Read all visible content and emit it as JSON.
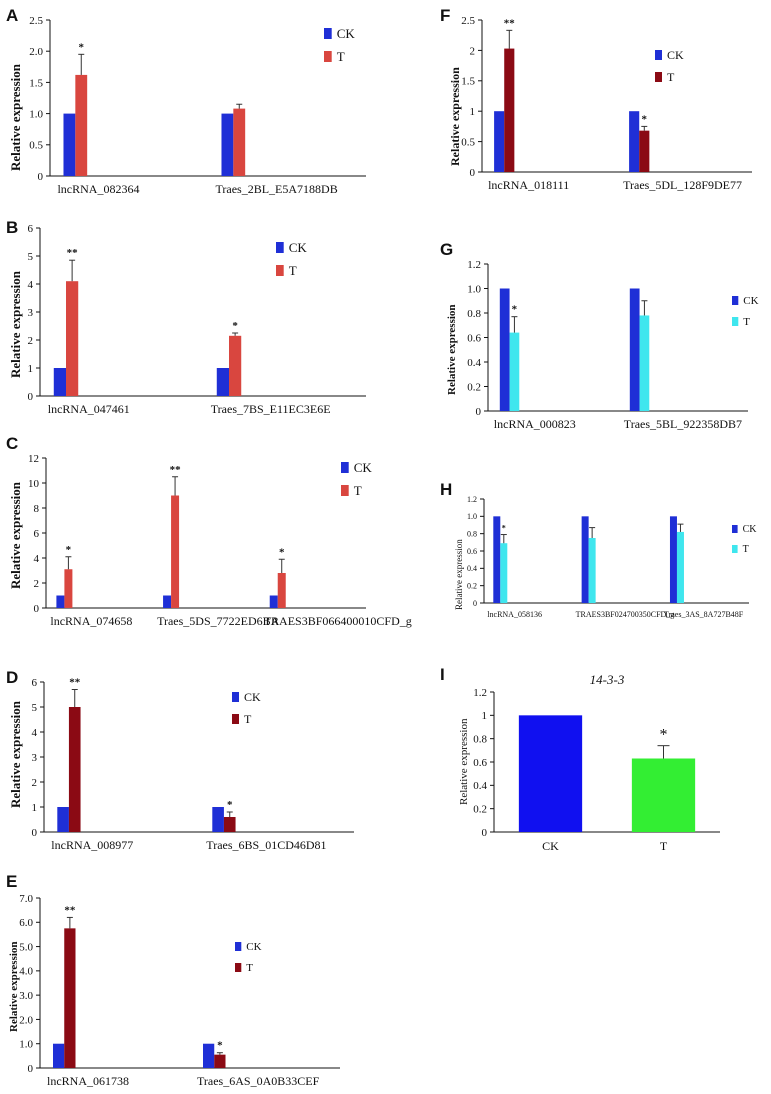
{
  "chart_data": [
    {
      "panel": "A",
      "type": "bar",
      "ylabel": "Relative expression",
      "ylim": [
        0,
        2.5
      ],
      "yticks": [
        "0",
        "0.5",
        "1.0",
        "1.5",
        "2.0",
        "2.5"
      ],
      "categories": [
        "lncRNA_082364",
        "Traes_2BL_E5A7188DB"
      ],
      "series": [
        {
          "name": "CK",
          "color": "#1f2fd6",
          "values": [
            1.0,
            1.0
          ],
          "errors": [
            0,
            0
          ]
        },
        {
          "name": "T",
          "color": "#d9463f",
          "values": [
            1.62,
            1.08
          ],
          "errors": [
            0.33,
            0.07
          ]
        }
      ],
      "significance": [
        "*",
        ""
      ]
    },
    {
      "panel": "B",
      "type": "bar",
      "ylabel": "Relative expression",
      "ylim": [
        0,
        6
      ],
      "yticks": [
        "0",
        "1",
        "2",
        "3",
        "4",
        "5",
        "6"
      ],
      "categories": [
        "lncRNA_047461",
        "Traes_7BS_E11EC3E6E"
      ],
      "series": [
        {
          "name": "CK",
          "color": "#1f2fd6",
          "values": [
            1.0,
            1.0
          ],
          "errors": [
            0,
            0
          ]
        },
        {
          "name": "T",
          "color": "#d9463f",
          "values": [
            4.1,
            2.15
          ],
          "errors": [
            0.75,
            0.1
          ]
        }
      ],
      "significance": [
        "**",
        "*"
      ]
    },
    {
      "panel": "C",
      "type": "bar",
      "ylabel": "Relative expression",
      "ylim": [
        0,
        12
      ],
      "yticks": [
        "0",
        "2",
        "4",
        "6",
        "8",
        "10",
        "12"
      ],
      "categories": [
        "lncRNA_074658",
        "Traes_5DS_7722ED6BA",
        "TRAES3BF066400010CFD_g"
      ],
      "series": [
        {
          "name": "CK",
          "color": "#1f2fd6",
          "values": [
            1.0,
            1.0,
            1.0
          ],
          "errors": [
            0,
            0,
            0
          ]
        },
        {
          "name": "T",
          "color": "#d9463f",
          "values": [
            3.1,
            9.0,
            2.8
          ],
          "errors": [
            1.0,
            1.5,
            1.1
          ]
        }
      ],
      "significance": [
        "*",
        "**",
        "*"
      ]
    },
    {
      "panel": "D",
      "type": "bar",
      "ylabel": "Relative expression",
      "ylim": [
        0,
        6
      ],
      "yticks": [
        "0",
        "1",
        "2",
        "3",
        "4",
        "5",
        "6"
      ],
      "categories": [
        "lncRNA_008977",
        "Traes_6BS_01CD46D81"
      ],
      "series": [
        {
          "name": "CK",
          "color": "#1f2fd6",
          "values": [
            1.0,
            1.0
          ],
          "errors": [
            0,
            0
          ]
        },
        {
          "name": "T",
          "color": "#8b0a14",
          "values": [
            5.0,
            0.6
          ],
          "errors": [
            0.7,
            0.2
          ]
        }
      ],
      "significance": [
        "**",
        "*"
      ]
    },
    {
      "panel": "E",
      "type": "bar",
      "ylabel": "Relative expression",
      "ylim": [
        0,
        7
      ],
      "yticks": [
        "0",
        "1.0",
        "2.0",
        "3.0",
        "4.0",
        "5.0",
        "6.0",
        "7.0"
      ],
      "categories": [
        "lncRNA_061738",
        "Traes_6AS_0A0B33CEF"
      ],
      "series": [
        {
          "name": "CK",
          "color": "#1f2fd6",
          "values": [
            1.0,
            1.0
          ],
          "errors": [
            0,
            0
          ]
        },
        {
          "name": "T",
          "color": "#8b0a14",
          "values": [
            5.75,
            0.55
          ],
          "errors": [
            0.45,
            0.08
          ]
        }
      ],
      "significance": [
        "**",
        "*"
      ]
    },
    {
      "panel": "F",
      "type": "bar",
      "ylabel": "Relative expression",
      "ylim": [
        0,
        2.5
      ],
      "yticks": [
        "0",
        "0.5",
        "1",
        "1.5",
        "2",
        "2.5"
      ],
      "categories": [
        "lncRNA_018111",
        "Traes_5DL_128F9DE77"
      ],
      "series": [
        {
          "name": "CK",
          "color": "#1f2fd6",
          "values": [
            1.0,
            1.0
          ],
          "errors": [
            0,
            0
          ]
        },
        {
          "name": "T",
          "color": "#8b0a14",
          "values": [
            2.03,
            0.68
          ],
          "errors": [
            0.3,
            0.07
          ]
        }
      ],
      "significance": [
        "**",
        "*"
      ]
    },
    {
      "panel": "G",
      "type": "bar",
      "ylabel": "Relative expression",
      "ylim": [
        0,
        1.2
      ],
      "yticks": [
        "0",
        "0.2",
        "0.4",
        "0.6",
        "0.8",
        "1.0",
        "1.2"
      ],
      "categories": [
        "lncRNA_000823",
        "Traes_5BL_922358DB7"
      ],
      "series": [
        {
          "name": "CK",
          "color": "#1f2fd6",
          "values": [
            1.0,
            1.0
          ],
          "errors": [
            0,
            0
          ]
        },
        {
          "name": "T",
          "color": "#3fe6ee",
          "values": [
            0.64,
            0.78
          ],
          "errors": [
            0.13,
            0.12
          ]
        }
      ],
      "significance": [
        "*",
        ""
      ]
    },
    {
      "panel": "H",
      "type": "bar",
      "ylabel": "Relative expression",
      "ylim": [
        0,
        1.2
      ],
      "yticks": [
        "0",
        "0.2",
        "0.4",
        "0.6",
        "0.8",
        "1.0",
        "1.2"
      ],
      "categories": [
        "lncRNA_058136",
        "TRAES3BF024700350CFD_g",
        "Traes_3AS_8A727B48F"
      ],
      "series": [
        {
          "name": "CK",
          "color": "#1f2fd6",
          "values": [
            1.0,
            1.0,
            1.0
          ],
          "errors": [
            0,
            0,
            0
          ]
        },
        {
          "name": "T",
          "color": "#3fe6ee",
          "values": [
            0.69,
            0.75,
            0.82
          ],
          "errors": [
            0.1,
            0.12,
            0.09
          ]
        }
      ],
      "significance": [
        "*",
        "",
        ""
      ]
    },
    {
      "panel": "I",
      "type": "bar",
      "title": "14-3-3",
      "ylabel": "Relative expression",
      "ylim": [
        0,
        1.2
      ],
      "yticks": [
        "0",
        "0.2",
        "0.4",
        "0.6",
        "0.8",
        "1",
        "1.2"
      ],
      "categories": [
        "CK",
        "T"
      ],
      "values": [
        1.0,
        0.63
      ],
      "errors": [
        0,
        0.11
      ],
      "colors": [
        "#1010f0",
        "#33ee33"
      ],
      "significance": [
        "",
        "*"
      ]
    }
  ]
}
